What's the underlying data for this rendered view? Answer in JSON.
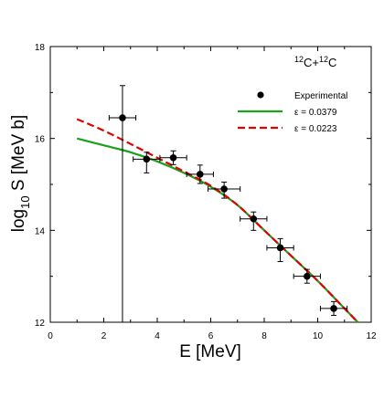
{
  "chart_data": {
    "type": "scatter",
    "annotation": {
      "base": "C+",
      "sup1": "12",
      "sup2": "12",
      "tail": "C"
    },
    "xlabel": "E [MeV]",
    "ylabel": {
      "pre": "log",
      "sub": "10",
      "post": " S [MeV b]"
    },
    "xlim": [
      0,
      12
    ],
    "ylim": [
      12,
      18
    ],
    "xticks": [
      0,
      2,
      4,
      6,
      8,
      10,
      12
    ],
    "yticks": [
      12,
      14,
      16,
      18
    ],
    "grid": false,
    "legend_position": "top-right",
    "series": [
      {
        "name": "Experimental",
        "kind": "points",
        "color": "#000000",
        "points": [
          {
            "x": 2.7,
            "y": 16.45,
            "xerr": 0.5,
            "yerr_low": 4.45,
            "yerr_high": 0.7
          },
          {
            "x": 3.6,
            "y": 15.55,
            "xerr": 0.5,
            "yerr_low": 0.3,
            "yerr_high": 0.15
          },
          {
            "x": 4.6,
            "y": 15.58,
            "xerr": 0.5,
            "yerr_low": 0.15,
            "yerr_high": 0.15
          },
          {
            "x": 5.6,
            "y": 15.22,
            "xerr": 0.5,
            "yerr_low": 0.2,
            "yerr_high": 0.2
          },
          {
            "x": 6.5,
            "y": 14.9,
            "xerr": 0.6,
            "yerr_low": 0.2,
            "yerr_high": 0.15
          },
          {
            "x": 7.6,
            "y": 14.25,
            "xerr": 0.5,
            "yerr_low": 0.25,
            "yerr_high": 0.15
          },
          {
            "x": 8.6,
            "y": 13.62,
            "xerr": 0.5,
            "yerr_low": 0.3,
            "yerr_high": 0.2
          },
          {
            "x": 9.6,
            "y": 13.0,
            "xerr": 0.5,
            "yerr_low": 0.15,
            "yerr_high": 0.15
          },
          {
            "x": 10.6,
            "y": 12.3,
            "xerr": 0.5,
            "yerr_low": 0.15,
            "yerr_high": 0.15
          }
        ]
      },
      {
        "name": "ε = 0.0379",
        "kind": "line",
        "style": "solid",
        "color": "#1aa01a",
        "x": [
          1,
          2,
          3,
          4,
          5,
          6,
          7,
          8,
          9,
          10,
          11,
          11.5
        ],
        "y": [
          16.0,
          15.85,
          15.7,
          15.5,
          15.25,
          14.95,
          14.55,
          14.0,
          13.45,
          12.9,
          12.3,
          12.0
        ]
      },
      {
        "name": "ε = 0.0223",
        "kind": "line",
        "style": "dashed",
        "color": "#e00000",
        "x": [
          1,
          2,
          3,
          4,
          5,
          6,
          7,
          8,
          9,
          10,
          11,
          11.5
        ],
        "y": [
          16.42,
          16.17,
          15.88,
          15.58,
          15.28,
          14.97,
          14.55,
          14.0,
          13.45,
          12.9,
          12.3,
          12.0
        ]
      }
    ]
  }
}
